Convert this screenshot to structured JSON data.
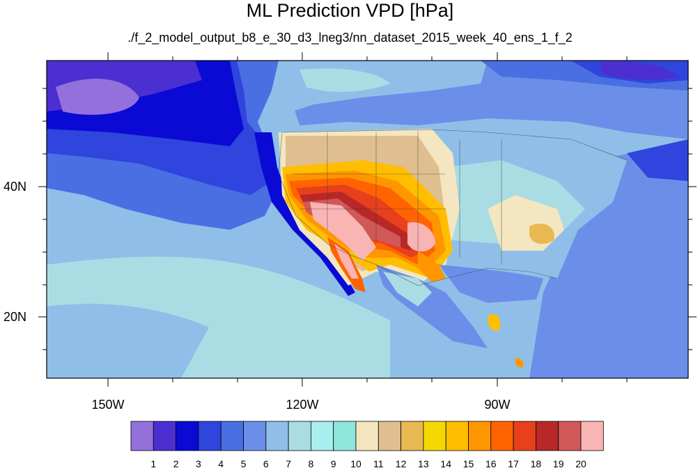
{
  "title": "ML Prediction VPD [hPa]",
  "subtitle": "./f_2_model_output_b8_e_30_d3_lneg3/nn_dataset_2015_week_40_ens_1_f_2",
  "lat_labels": [
    "40N",
    "20N"
  ],
  "lon_labels": [
    "150W",
    "120W",
    "90W"
  ],
  "colorbar": {
    "colors": [
      "#9370db",
      "#4b2fd0",
      "#0a0ad4",
      "#2f45dd",
      "#4a6fe3",
      "#6b8fe8",
      "#8fbfe8",
      "#aadce4",
      "#a8eef0",
      "#8ee6dc",
      "#f3e6c0",
      "#dfbf90",
      "#e8b852",
      "#f5d800",
      "#ffbe00",
      "#ff9600",
      "#ff6400",
      "#e8401c",
      "#b82828",
      "#d05858",
      "#f9b4b4"
    ],
    "labels": [
      "1",
      "2",
      "3",
      "4",
      "5",
      "6",
      "7",
      "8",
      "9",
      "10",
      "11",
      "12",
      "13",
      "14",
      "15",
      "16",
      "17",
      "18",
      "19",
      "20"
    ]
  }
}
